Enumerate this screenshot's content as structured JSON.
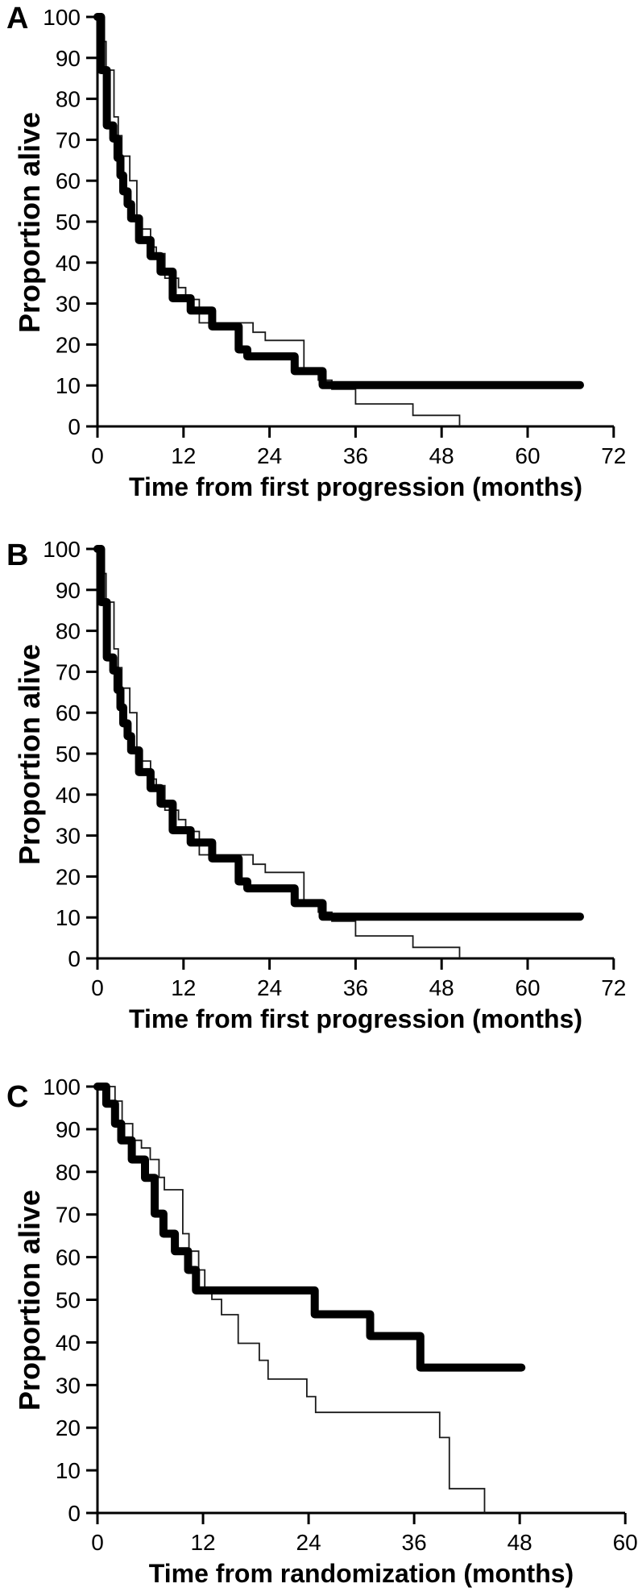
{
  "figure": {
    "y_axis_label": "Proportion alive",
    "background_color": "#ffffff",
    "curve_color": "#000000",
    "thin_curve_color": "#1a1a1a"
  },
  "chart_data": [
    {
      "type": "line",
      "subtype": "kaplan-meier-step",
      "panel": "A",
      "xlabel": "Time from first progression (months)",
      "ylabel": "Proportion alive",
      "xlim": [
        0,
        72
      ],
      "ylim": [
        0,
        100
      ],
      "x_ticks": [
        0,
        12,
        24,
        36,
        48,
        60,
        72
      ],
      "y_ticks": [
        0,
        10,
        20,
        30,
        40,
        50,
        60,
        70,
        80,
        90,
        100
      ],
      "grid": false,
      "legend": "none",
      "series": [
        {
          "name": "thin-line",
          "style": "thin",
          "end_month": 50.5,
          "points": [
            [
              0,
              100
            ],
            [
              0.6,
              94
            ],
            [
              1.2,
              87
            ],
            [
              2.3,
              75.6
            ],
            [
              2.9,
              71
            ],
            [
              3.4,
              66
            ],
            [
              4.5,
              60
            ],
            [
              5.5,
              48.2
            ],
            [
              7.4,
              43.8
            ],
            [
              8.2,
              42.2
            ],
            [
              9.4,
              36.2
            ],
            [
              11.3,
              33.9
            ],
            [
              12.3,
              31
            ],
            [
              14.2,
              25.3
            ],
            [
              21.7,
              23
            ],
            [
              23.4,
              21
            ],
            [
              28.8,
              14
            ],
            [
              30.8,
              11.3
            ],
            [
              32.7,
              9.1
            ],
            [
              36,
              5.5
            ],
            [
              44,
              2.7
            ],
            [
              50.5,
              0
            ]
          ]
        },
        {
          "name": "thick-line",
          "style": "thick",
          "end_month": 67.3,
          "points": [
            [
              0,
              100
            ],
            [
              0.5,
              87
            ],
            [
              1.3,
              73.5
            ],
            [
              2.2,
              70.3
            ],
            [
              2.8,
              65.6
            ],
            [
              3.2,
              61.3
            ],
            [
              3.6,
              57.4
            ],
            [
              4.2,
              54.3
            ],
            [
              4.7,
              50.8
            ],
            [
              5.8,
              45.5
            ],
            [
              7.4,
              41.6
            ],
            [
              8.8,
              37.8
            ],
            [
              10.5,
              31.3
            ],
            [
              13,
              28.3
            ],
            [
              16,
              24.4
            ],
            [
              19.7,
              18.8
            ],
            [
              20.9,
              17.1
            ],
            [
              27.5,
              13.5
            ],
            [
              31.4,
              10.1
            ]
          ]
        }
      ]
    },
    {
      "type": "line",
      "subtype": "kaplan-meier-step",
      "panel": "B",
      "xlabel": "Time from first progression (months)",
      "ylabel": "Proportion alive",
      "xlim": [
        0,
        72
      ],
      "ylim": [
        0,
        100
      ],
      "x_ticks": [
        0,
        12,
        24,
        36,
        48,
        60,
        72
      ],
      "y_ticks": [
        0,
        10,
        20,
        30,
        40,
        50,
        60,
        70,
        80,
        90,
        100
      ],
      "grid": false,
      "legend": "none",
      "series": [
        {
          "name": "thin-line",
          "style": "thin",
          "end_month": 50.5,
          "points": [
            [
              0,
              100
            ],
            [
              0.6,
              94
            ],
            [
              1.2,
              87
            ],
            [
              2.3,
              75.6
            ],
            [
              2.9,
              71
            ],
            [
              3.4,
              66
            ],
            [
              4.5,
              60
            ],
            [
              5.5,
              48.2
            ],
            [
              7.4,
              43.8
            ],
            [
              8.2,
              42.2
            ],
            [
              9.4,
              36.2
            ],
            [
              11.3,
              33.9
            ],
            [
              12.3,
              31
            ],
            [
              14.2,
              25.3
            ],
            [
              21.7,
              23
            ],
            [
              23.4,
              21
            ],
            [
              28.8,
              14
            ],
            [
              30.8,
              11.3
            ],
            [
              32.7,
              9.1
            ],
            [
              36,
              5.5
            ],
            [
              44,
              2.7
            ],
            [
              50.5,
              0
            ]
          ]
        },
        {
          "name": "thick-line",
          "style": "thick",
          "end_month": 67.3,
          "points": [
            [
              0,
              100
            ],
            [
              0.5,
              87
            ],
            [
              1.3,
              73.5
            ],
            [
              2.2,
              70.3
            ],
            [
              2.8,
              65.6
            ],
            [
              3.2,
              61.3
            ],
            [
              3.6,
              57.4
            ],
            [
              4.2,
              54.3
            ],
            [
              4.7,
              50.8
            ],
            [
              5.8,
              45.5
            ],
            [
              7.4,
              41.6
            ],
            [
              8.8,
              37.8
            ],
            [
              10.5,
              31.3
            ],
            [
              13,
              28.3
            ],
            [
              16,
              24.4
            ],
            [
              19.7,
              18.8
            ],
            [
              20.9,
              17.1
            ],
            [
              27.5,
              13.5
            ],
            [
              31.4,
              10.2
            ]
          ]
        }
      ]
    },
    {
      "type": "line",
      "subtype": "kaplan-meier-step",
      "panel": "C",
      "xlabel": "Time from randomization (months)",
      "ylabel": "Proportion alive",
      "xlim": [
        0,
        60
      ],
      "ylim": [
        0,
        100
      ],
      "x_ticks": [
        0,
        12,
        24,
        36,
        48,
        60
      ],
      "y_ticks": [
        0,
        10,
        20,
        30,
        40,
        50,
        60,
        70,
        80,
        90,
        100
      ],
      "grid": false,
      "legend": "none",
      "series": [
        {
          "name": "thin-line",
          "style": "thin",
          "end_month": 44,
          "points": [
            [
              0,
              100
            ],
            [
              2,
              96.6
            ],
            [
              2.8,
              91.3
            ],
            [
              4,
              87.4
            ],
            [
              5,
              85.6
            ],
            [
              6,
              82.9
            ],
            [
              7,
              78.7
            ],
            [
              7.6,
              75.8
            ],
            [
              9.7,
              65.5
            ],
            [
              10.4,
              61.4
            ],
            [
              11.5,
              57
            ],
            [
              12.2,
              52.2
            ],
            [
              13,
              50.1
            ],
            [
              14.1,
              46.5
            ],
            [
              16,
              39.8
            ],
            [
              18.4,
              35.8
            ],
            [
              19.4,
              31.4
            ],
            [
              23.8,
              27.3
            ],
            [
              24.8,
              23.6
            ],
            [
              38.9,
              17.7
            ],
            [
              40,
              5.7
            ],
            [
              44,
              0
            ]
          ]
        },
        {
          "name": "thick-line",
          "style": "thick",
          "end_month": 48.2,
          "points": [
            [
              0,
              100
            ],
            [
              1,
              96
            ],
            [
              2,
              91.3
            ],
            [
              2.7,
              87.4
            ],
            [
              3.9,
              82.9
            ],
            [
              5.4,
              78.6
            ],
            [
              6.5,
              70.2
            ],
            [
              7.5,
              65.5
            ],
            [
              8.8,
              61.4
            ],
            [
              10.3,
              57
            ],
            [
              11.2,
              52.2
            ],
            [
              24.7,
              46.6
            ],
            [
              31,
              41.5
            ],
            [
              36.7,
              34.1
            ]
          ]
        }
      ]
    }
  ]
}
